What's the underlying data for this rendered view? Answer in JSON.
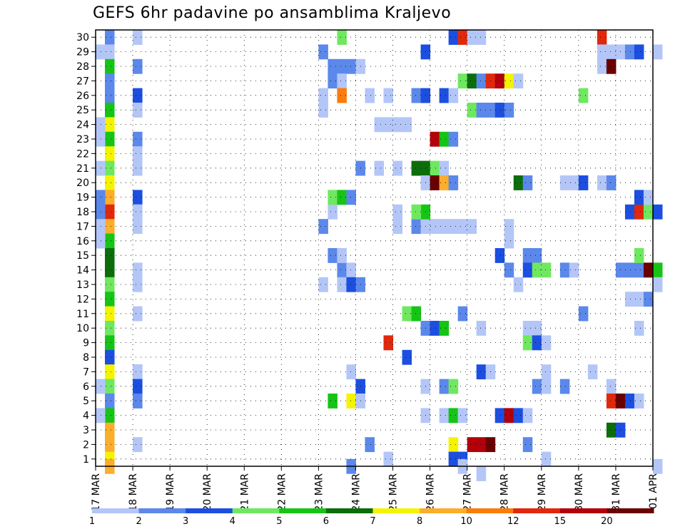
{
  "chart_data": {
    "type": "heatmap",
    "title": "GEFS 6hr padavine po ansamblima Kraljevo",
    "xlabel": "",
    "ylabel": "",
    "x_tick_labels": [
      "17 MAR",
      "18 MAR",
      "19 MAR",
      "20 MAR",
      "21 MAR",
      "22 MAR",
      "23 MAR",
      "24 MAR",
      "25 MAR",
      "26 MAR",
      "27 MAR",
      "28 MAR",
      "29 MAR",
      "30 MAR",
      "31 MAR",
      "01 APR"
    ],
    "y_tick_labels": [
      "1",
      "2",
      "3",
      "4",
      "5",
      "6",
      "7",
      "8",
      "9",
      "10",
      "11",
      "12",
      "13",
      "14",
      "15",
      "16",
      "17",
      "18",
      "19",
      "20",
      "21",
      "22",
      "23",
      "24",
      "25",
      "26",
      "27",
      "28",
      "29",
      "30"
    ],
    "xlim": [
      0,
      15
    ],
    "ylim": [
      0.5,
      30.5
    ],
    "grid": true,
    "colorbar": {
      "labels": [
        "1",
        "2",
        "3",
        "4",
        "5",
        "6",
        "7",
        "8",
        "10",
        "12",
        "15",
        "20"
      ],
      "colors": [
        "#b3c6f7",
        "#5b88ea",
        "#1c4fe0",
        "#6fe860",
        "#16c416",
        "#0b6e0b",
        "#f4f400",
        "#fbad2c",
        "#fb7c0c",
        "#e0280c",
        "#b3000a",
        "#6a0000"
      ]
    },
    "cells": [
      [
        0.25,
        30,
        2
      ],
      [
        0.25,
        29,
        1
      ],
      [
        0.25,
        28,
        5
      ],
      [
        0.25,
        27,
        2
      ],
      [
        0.25,
        26,
        2
      ],
      [
        0.25,
        25,
        5
      ],
      [
        0.25,
        24,
        7
      ],
      [
        0.25,
        23,
        5
      ],
      [
        0.25,
        22,
        7
      ],
      [
        0.25,
        21,
        4
      ],
      [
        0.25,
        20,
        7
      ],
      [
        0.25,
        19,
        8
      ],
      [
        0.25,
        18,
        10
      ],
      [
        0.25,
        17,
        8
      ],
      [
        0.25,
        16,
        5
      ],
      [
        0.25,
        15,
        6
      ],
      [
        0.25,
        14,
        6
      ],
      [
        0.25,
        13,
        4
      ],
      [
        0.25,
        12,
        5
      ],
      [
        0.25,
        11,
        7
      ],
      [
        0.25,
        10,
        4
      ],
      [
        0.25,
        9,
        5
      ],
      [
        0.25,
        8,
        3
      ],
      [
        0.25,
        7,
        7
      ],
      [
        0.25,
        6,
        4
      ],
      [
        0.25,
        5,
        2
      ],
      [
        0.25,
        4,
        5
      ],
      [
        0.25,
        3,
        8
      ],
      [
        0.25,
        2,
        8
      ],
      [
        0.25,
        1,
        7
      ],
      [
        0.25,
        0.5,
        8
      ],
      [
        0,
        29,
        1
      ],
      [
        0,
        24,
        1
      ],
      [
        0,
        23,
        1
      ],
      [
        0,
        21,
        1
      ],
      [
        0,
        19,
        2
      ],
      [
        0,
        18,
        2
      ],
      [
        0,
        17,
        1
      ],
      [
        0,
        16,
        1
      ],
      [
        0,
        6,
        1
      ],
      [
        0,
        4,
        1
      ],
      [
        1,
        30,
        1
      ],
      [
        1,
        28,
        2
      ],
      [
        1,
        26,
        3
      ],
      [
        1,
        25,
        1
      ],
      [
        1,
        23,
        2
      ],
      [
        1,
        22,
        1
      ],
      [
        1,
        21,
        1
      ],
      [
        1,
        19,
        3
      ],
      [
        1,
        18,
        1
      ],
      [
        1,
        18,
        1
      ],
      [
        1,
        17,
        1
      ],
      [
        1,
        14,
        1
      ],
      [
        1,
        13,
        1
      ],
      [
        1,
        11,
        1
      ],
      [
        1,
        7,
        2
      ],
      [
        1,
        7,
        1
      ],
      [
        1,
        6,
        3
      ],
      [
        1,
        5,
        2
      ],
      [
        1,
        2,
        1
      ],
      [
        6.5,
        30,
        4
      ],
      [
        6,
        29,
        2
      ],
      [
        6.25,
        28,
        2
      ],
      [
        6.5,
        28,
        2
      ],
      [
        6.75,
        28,
        2
      ],
      [
        7,
        28,
        1
      ],
      [
        6.25,
        27,
        2
      ],
      [
        6.5,
        27,
        1
      ],
      [
        6,
        26,
        1
      ],
      [
        6.5,
        26,
        9
      ],
      [
        7.25,
        26,
        1
      ],
      [
        6,
        25,
        1
      ],
      [
        6.25,
        18,
        1
      ],
      [
        6,
        17,
        2
      ],
      [
        6.5,
        14,
        2
      ],
      [
        6.75,
        14,
        1
      ],
      [
        6.25,
        15,
        2
      ],
      [
        6.5,
        15,
        1
      ],
      [
        6,
        13,
        1
      ],
      [
        6.5,
        13,
        1
      ],
      [
        6.75,
        13,
        3
      ],
      [
        7,
        13,
        2
      ],
      [
        6.25,
        19,
        4
      ],
      [
        6.5,
        19,
        5
      ],
      [
        6.75,
        19,
        2
      ],
      [
        6.75,
        7,
        1
      ],
      [
        7,
        6,
        3
      ],
      [
        6.25,
        5,
        5
      ],
      [
        6.75,
        5,
        7
      ],
      [
        7,
        5,
        1
      ],
      [
        7.25,
        2,
        2
      ],
      [
        6.75,
        0.5,
        2
      ],
      [
        7,
        21,
        2
      ],
      [
        7.5,
        21,
        1
      ],
      [
        7.5,
        24,
        1
      ],
      [
        7.75,
        24,
        1
      ],
      [
        7.75,
        26,
        1
      ],
      [
        7.75,
        1,
        1
      ],
      [
        8,
        24,
        1
      ],
      [
        8.25,
        24,
        1
      ],
      [
        8.5,
        26,
        2
      ],
      [
        8.75,
        26,
        3
      ],
      [
        8.75,
        29,
        3
      ],
      [
        8,
        21,
        1
      ],
      [
        8,
        18,
        1
      ],
      [
        8,
        17,
        1
      ],
      [
        8.5,
        17,
        2
      ],
      [
        8.75,
        17,
        1
      ],
      [
        8.75,
        18,
        5
      ],
      [
        8.5,
        18,
        4
      ],
      [
        8.5,
        21,
        6
      ],
      [
        8.75,
        21,
        6
      ],
      [
        9,
        21,
        4
      ],
      [
        9.25,
        21,
        1
      ],
      [
        8.75,
        20,
        1
      ],
      [
        9,
        20,
        12
      ],
      [
        9.25,
        20,
        8
      ],
      [
        9.5,
        20,
        2
      ],
      [
        8.25,
        11,
        4
      ],
      [
        8.5,
        11,
        5
      ],
      [
        8.75,
        10,
        2
      ],
      [
        9,
        10,
        3
      ],
      [
        9.25,
        10,
        5
      ],
      [
        7.75,
        9,
        10
      ],
      [
        8.25,
        8,
        3
      ],
      [
        8.75,
        6,
        1
      ],
      [
        9.25,
        6,
        2
      ],
      [
        9.5,
        6,
        4
      ],
      [
        8.75,
        4,
        1
      ],
      [
        9.25,
        4,
        1
      ],
      [
        9.5,
        4,
        5
      ],
      [
        9.75,
        4,
        1
      ],
      [
        9.5,
        2,
        7
      ],
      [
        9.5,
        1,
        3
      ],
      [
        9.75,
        1,
        3
      ],
      [
        9.75,
        0.5,
        1
      ],
      [
        9,
        23,
        11
      ],
      [
        9.25,
        23,
        5
      ],
      [
        9.5,
        23,
        2
      ],
      [
        9.25,
        26,
        3
      ],
      [
        9.5,
        26,
        1
      ],
      [
        9.5,
        30,
        3
      ],
      [
        9.75,
        30,
        10
      ],
      [
        10,
        30,
        1
      ],
      [
        10.25,
        30,
        1
      ],
      [
        9,
        17,
        1
      ],
      [
        9.25,
        17,
        1
      ],
      [
        9.5,
        17,
        1
      ],
      [
        9.75,
        17,
        1
      ],
      [
        10,
        17,
        1
      ],
      [
        9.75,
        27,
        4
      ],
      [
        10,
        27,
        6
      ],
      [
        10.25,
        27,
        2
      ],
      [
        10.5,
        27,
        10
      ],
      [
        10.75,
        27,
        11
      ],
      [
        11,
        27,
        7
      ],
      [
        11.25,
        27,
        1
      ],
      [
        10,
        25,
        4
      ],
      [
        10.25,
        25,
        2
      ],
      [
        10.5,
        25,
        2
      ],
      [
        10.75,
        25,
        3
      ],
      [
        11,
        25,
        2
      ],
      [
        9.75,
        11,
        2
      ],
      [
        10.25,
        10,
        1
      ],
      [
        10,
        2,
        11
      ],
      [
        10.25,
        2,
        11
      ],
      [
        10.5,
        2,
        12
      ],
      [
        10.25,
        7,
        3
      ],
      [
        10.5,
        7,
        1
      ],
      [
        10.25,
        0,
        1
      ],
      [
        10.75,
        15,
        3
      ],
      [
        11,
        16,
        1
      ],
      [
        11,
        17,
        1
      ],
      [
        11,
        14,
        2
      ],
      [
        11.25,
        13,
        1
      ],
      [
        10.75,
        4,
        3
      ],
      [
        11,
        4,
        11
      ],
      [
        11.25,
        4,
        3
      ],
      [
        11.5,
        4,
        1
      ],
      [
        11.25,
        20,
        6
      ],
      [
        11.5,
        20,
        2
      ],
      [
        12.5,
        20,
        1
      ],
      [
        12.75,
        20,
        1
      ],
      [
        13,
        20,
        3
      ],
      [
        13.5,
        20,
        1
      ],
      [
        13.75,
        20,
        2
      ],
      [
        11.5,
        15,
        2
      ],
      [
        11.75,
        15,
        2
      ],
      [
        11.5,
        14,
        3
      ],
      [
        11.75,
        14,
        4
      ],
      [
        12,
        14,
        4
      ],
      [
        12.5,
        14,
        2
      ],
      [
        12.75,
        14,
        1
      ],
      [
        11.5,
        10,
        1
      ],
      [
        11.75,
        10,
        1
      ],
      [
        11.5,
        9,
        4
      ],
      [
        11.75,
        9,
        3
      ],
      [
        12,
        9,
        1
      ],
      [
        12,
        7,
        1
      ],
      [
        11.75,
        6,
        2
      ],
      [
        12,
        6,
        1
      ],
      [
        12.5,
        6,
        2
      ],
      [
        11.5,
        2,
        2
      ],
      [
        12,
        1,
        1
      ],
      [
        13,
        26,
        4
      ],
      [
        13,
        11,
        2
      ],
      [
        13.25,
        7,
        1
      ],
      [
        13.75,
        6,
        1
      ],
      [
        13.75,
        5,
        10
      ],
      [
        14,
        5,
        12
      ],
      [
        14.25,
        5,
        3
      ],
      [
        14.5,
        5,
        1
      ],
      [
        13.75,
        3,
        6
      ],
      [
        14,
        3,
        3
      ],
      [
        13.5,
        30,
        10
      ],
      [
        13.5,
        29,
        1
      ],
      [
        13.75,
        29,
        1
      ],
      [
        14,
        29,
        1
      ],
      [
        14.25,
        29,
        2
      ],
      [
        14.5,
        29,
        3
      ],
      [
        15,
        29,
        1
      ],
      [
        13.5,
        28,
        1
      ],
      [
        13.75,
        28,
        12
      ],
      [
        14,
        14,
        2
      ],
      [
        14.25,
        14,
        2
      ],
      [
        14.5,
        14,
        2
      ],
      [
        14.75,
        14,
        12
      ],
      [
        15,
        14,
        5
      ],
      [
        14.5,
        15,
        4
      ],
      [
        14.25,
        18,
        3
      ],
      [
        14.5,
        18,
        10
      ],
      [
        14.75,
        18,
        4
      ],
      [
        15,
        18,
        3
      ],
      [
        14.5,
        19,
        3
      ],
      [
        14.75,
        19,
        1
      ],
      [
        14.25,
        12,
        1
      ],
      [
        14.5,
        12,
        1
      ],
      [
        14.75,
        12,
        2
      ],
      [
        14.5,
        10,
        1
      ],
      [
        15,
        13,
        1
      ],
      [
        15,
        0.5,
        1
      ]
    ]
  }
}
